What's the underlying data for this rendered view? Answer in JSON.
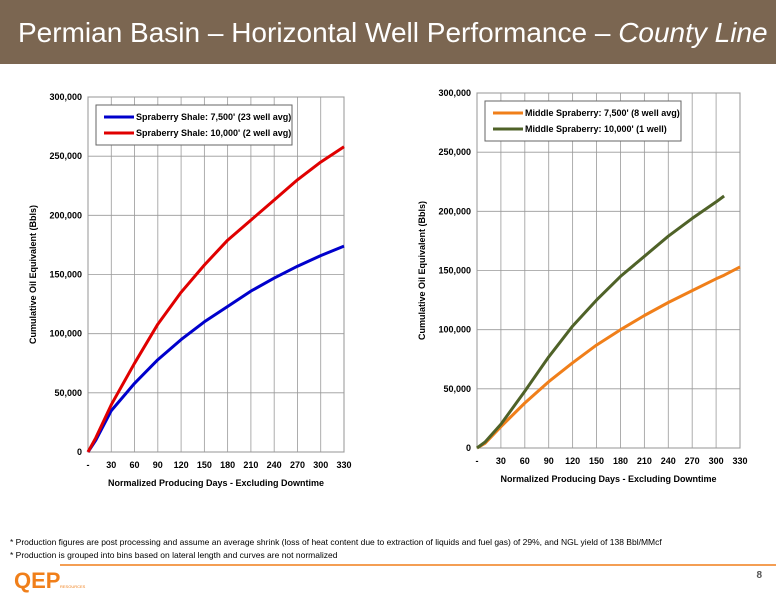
{
  "header": {
    "title": "Permian Basin – Horizontal Well Performance –",
    "title_italic": "County Line"
  },
  "footnotes": [
    "* Production figures are post processing and assume an average shrink (loss of heat content due to extraction of liquids and fuel gas) of 29%, and NGL yield of 138 Bbl/MMcf",
    "* Production is grouped into bins based on lateral length and curves are not normalized"
  ],
  "logo": {
    "name": "QEP",
    "sub": "RESOURCES"
  },
  "page_number": "8",
  "chart_data": [
    {
      "type": "line",
      "x_label": "Normalized Producing Days - Excluding Downtime",
      "y_label": "Cumulative Oil Equivalent (Bbls)",
      "x": [
        0,
        10,
        30,
        60,
        90,
        120,
        150,
        180,
        210,
        240,
        270,
        300,
        330
      ],
      "series": [
        {
          "name": "Spraberry Shale: 7,500' (23 well avg)",
          "color": "#0000cc",
          "values": [
            0,
            10000,
            35000,
            58000,
            78000,
            95000,
            110000,
            123000,
            136000,
            147000,
            157000,
            166000,
            174000
          ]
        },
        {
          "name": "Spraberry Shale: 10,000' (2 well avg)",
          "color": "#e00000",
          "values": [
            0,
            12000,
            40000,
            75000,
            108000,
            135000,
            158000,
            179000,
            196000,
            213000,
            230000,
            245000,
            258000
          ]
        }
      ],
      "xlim": [
        0,
        330
      ],
      "ylim": [
        0,
        300000
      ],
      "xticks": [
        {
          "value": 0,
          "label": "-"
        },
        30,
        60,
        90,
        120,
        150,
        180,
        210,
        240,
        270,
        300,
        330
      ],
      "yticks": [
        0,
        {
          "value": 50000,
          "label": "50,000"
        },
        {
          "value": 100000,
          "label": "100,000"
        },
        {
          "value": 150000,
          "label": "150,000"
        },
        {
          "value": 200000,
          "label": "200,000"
        },
        {
          "value": 250000,
          "label": "250,000"
        },
        {
          "value": 300000,
          "label": "300,000"
        }
      ],
      "grid": true,
      "legend": "top-left"
    },
    {
      "type": "line",
      "x_label": "Normalized Producing Days - Excluding Downtime",
      "y_label": "Cumulative Oil Equivalent (Bbls)",
      "x": [
        0,
        10,
        30,
        60,
        90,
        120,
        150,
        180,
        210,
        240,
        270,
        300,
        310,
        330
      ],
      "series": [
        {
          "name": "Middle Spraberry: 7,500' (8 well avg)",
          "color": "#f07f1a",
          "values": [
            0,
            4000,
            18000,
            38000,
            56000,
            72000,
            87000,
            100000,
            112000,
            123000,
            133000,
            143000,
            146000,
            153000
          ]
        },
        {
          "name": "Middle Spraberry: 10,000' (1 well)",
          "color": "#4f6228",
          "values": [
            0,
            5000,
            20000,
            48000,
            77000,
            103000,
            125000,
            145000,
            162000,
            179000,
            194000,
            208000,
            213000,
            null
          ]
        }
      ],
      "xlim": [
        0,
        330
      ],
      "ylim": [
        0,
        300000
      ],
      "xticks": [
        {
          "value": 0,
          "label": "-"
        },
        30,
        60,
        90,
        120,
        150,
        180,
        210,
        240,
        270,
        300,
        330
      ],
      "yticks": [
        0,
        {
          "value": 50000,
          "label": "50,000"
        },
        {
          "value": 100000,
          "label": "100,000"
        },
        {
          "value": 150000,
          "label": "150,000"
        },
        {
          "value": 200000,
          "label": "200,000"
        },
        {
          "value": 250000,
          "label": "250,000"
        },
        {
          "value": 300000,
          "label": "300,000"
        }
      ],
      "grid": true,
      "legend": "top-left"
    }
  ]
}
